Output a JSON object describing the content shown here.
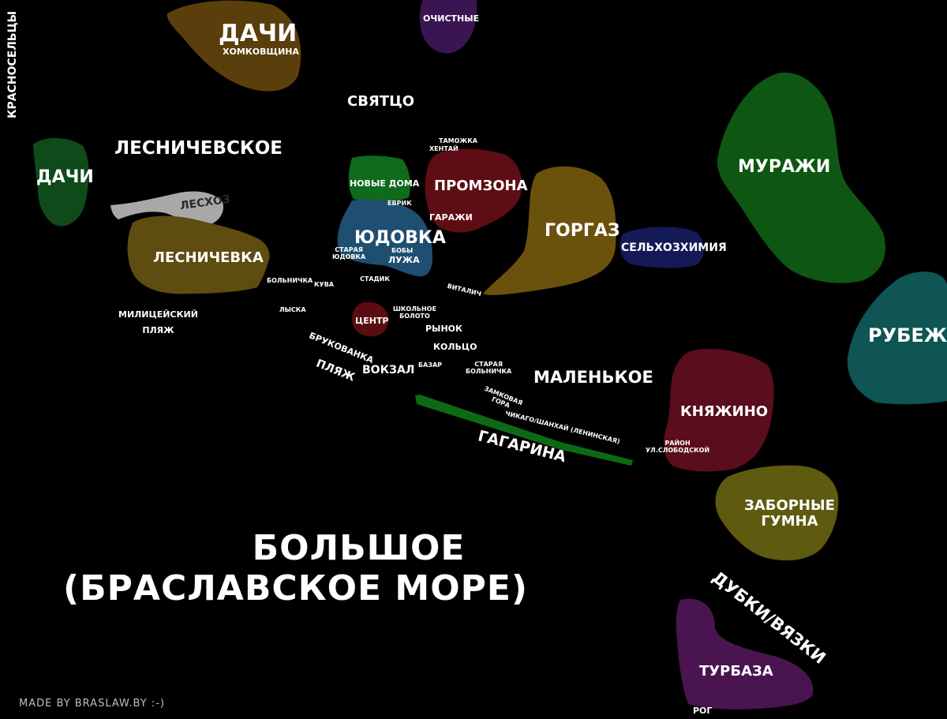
{
  "colors": {
    "dachi_top": "#5a3e0c",
    "ochistnye": "#3a1552",
    "dachi_left": "#0f4a1a",
    "leskhoz": "#a8a8a8",
    "lesnichevka": "#5e4c10",
    "novye_doma": "#0f6a1c",
    "yudovka": "#1f4f70",
    "promzona": "#5e0d14",
    "gorgaz": "#6b520c",
    "selkhozkhimiya": "#131a55",
    "murazhi": "#0d5712",
    "rubezh": "#0e5553",
    "tsentr": "#5a0d10",
    "knyazhino": "#5a0d1c",
    "zabornye": "#5e5a10",
    "turbaza": "#4a1450",
    "gagarina": "#0d6a14"
  },
  "regions": {
    "dachi_top": "ДАЧИ",
    "khomkovshchina": "ХОМКОВЩИНА",
    "ochistnye": "ОЧИСТНЫЕ",
    "dachi_left": "ДАЧИ",
    "leskhoz": "ЛЕСХОЗ",
    "lesnichevka": "ЛЕСНИЧЕВКА",
    "novye_doma": "НОВЫЕ ДОМА",
    "yudovka": "ЮДОВКА",
    "staraya_yudovka": [
      "СТАРАЯ",
      "ЮДОВКА"
    ],
    "boby": "БОБЫ",
    "luzha": "ЛУЖА",
    "promzona": "ПРОМЗОНА",
    "garazhi": "ГАРАЖИ",
    "gorgaz": "ГОРГАЗ",
    "selkhozkhimiya": "СЕЛЬХОЗХИМИЯ",
    "murazhi": "МУРАЖИ",
    "rubezh": "РУБЕЖ",
    "tsentr": "ЦЕНТР",
    "knyazhino": "КНЯЖИНО",
    "rayon": [
      "РАЙОН",
      "УЛ.СЛОБОДСКОЙ"
    ],
    "zabornye_gumna": [
      "ЗАБОРНЫЕ",
      "ГУМНА"
    ],
    "turbaza": "ТУРБАЗА",
    "gagarina": "ГАГАРИНА"
  },
  "labels": {
    "krasnoseltsy": "КРАСНОСЕЛЬЦЫ",
    "svyattso": "СВЯТЦО",
    "lesnichevskoe": "ЛЕСНИЧЕВСКОЕ",
    "tamozhka": "ТАМОЖКА",
    "khentay": "ХЕНТАЙ",
    "evrik": "ЕВРИК",
    "bolnichka": "БОЛЬНИЧКА",
    "kuva": "КУВА",
    "stadik": "СТАДИК",
    "vitalich": "ВИТАЛИЧ",
    "militseyskiy_plyazh": [
      "МИЛИЦЕЙСКИЙ",
      "ПЛЯЖ"
    ],
    "lyska": "ЛЫСКА",
    "shkolnoe_boloto": [
      "ШКОЛЬНОЕ",
      "БОЛОТО"
    ],
    "rynok": "РЫНОК",
    "brukovanka": "БРУКОВАНКА",
    "koltso": "КОЛЬЦО",
    "plyazh": "ПЛЯЖ",
    "vokzal": "ВОКЗАЛ",
    "bazar": "БАЗАР",
    "staraya_bolnichka": [
      "СТАРАЯ",
      "БОЛЬНИЧКА"
    ],
    "malenkoe": "МАЛЕНЬКОЕ",
    "zamkovaya_gora": [
      "ЗАМКОВАЯ",
      "ГОРА"
    ],
    "chikago": "ЧИКАГО/ШАНХАЙ (ЛЕНИНСКАЯ)",
    "dubki": "ДУБКИ/ВЯЗКИ",
    "rog": "РОГ",
    "bolshoe": [
      "БОЛЬШОЕ",
      "(БРАСЛАВСКОЕ МОРЕ)"
    ]
  },
  "credit": "MADE BY BRASLAW.BY :-)"
}
